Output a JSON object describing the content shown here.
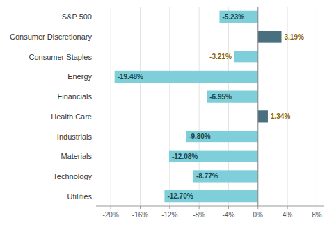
{
  "chart_data": {
    "type": "bar",
    "orientation": "horizontal",
    "categories": [
      "S&P 500",
      "Consumer Discretionary",
      "Consumer Staples",
      "Energy",
      "Financials",
      "Health Care",
      "Industrials",
      "Materials",
      "Technology",
      "Utilities"
    ],
    "values": [
      -5.23,
      3.19,
      -3.21,
      -19.48,
      -6.95,
      1.34,
      -9.8,
      -12.08,
      -8.77,
      -12.7
    ],
    "value_labels": [
      "-5.23%",
      "3.19%",
      "-3.21%",
      "-19.48%",
      "-6.95%",
      "1.34%",
      "-9.80%",
      "-12.08%",
      "-8.77%",
      "-12.70%"
    ],
    "colors": [
      "#7ecfd9",
      "#4a7080",
      "#7ecfd9",
      "#7ecfd9",
      "#7ecfd9",
      "#4a7080",
      "#7ecfd9",
      "#7ecfd9",
      "#7ecfd9",
      "#7ecfd9"
    ],
    "xlim": [
      -22,
      9
    ],
    "xticks": [
      {
        "value": -20,
        "label": "-20%"
      },
      {
        "value": -16,
        "label": "-16%"
      },
      {
        "value": -12,
        "label": "-12%"
      },
      {
        "value": -8,
        "label": "-8%"
      },
      {
        "value": -4,
        "label": "-4%"
      },
      {
        "value": 0,
        "label": "0%"
      },
      {
        "value": 4,
        "label": "4%"
      },
      {
        "value": 8,
        "label": "8%"
      }
    ],
    "grid": true,
    "data_labels": true
  }
}
